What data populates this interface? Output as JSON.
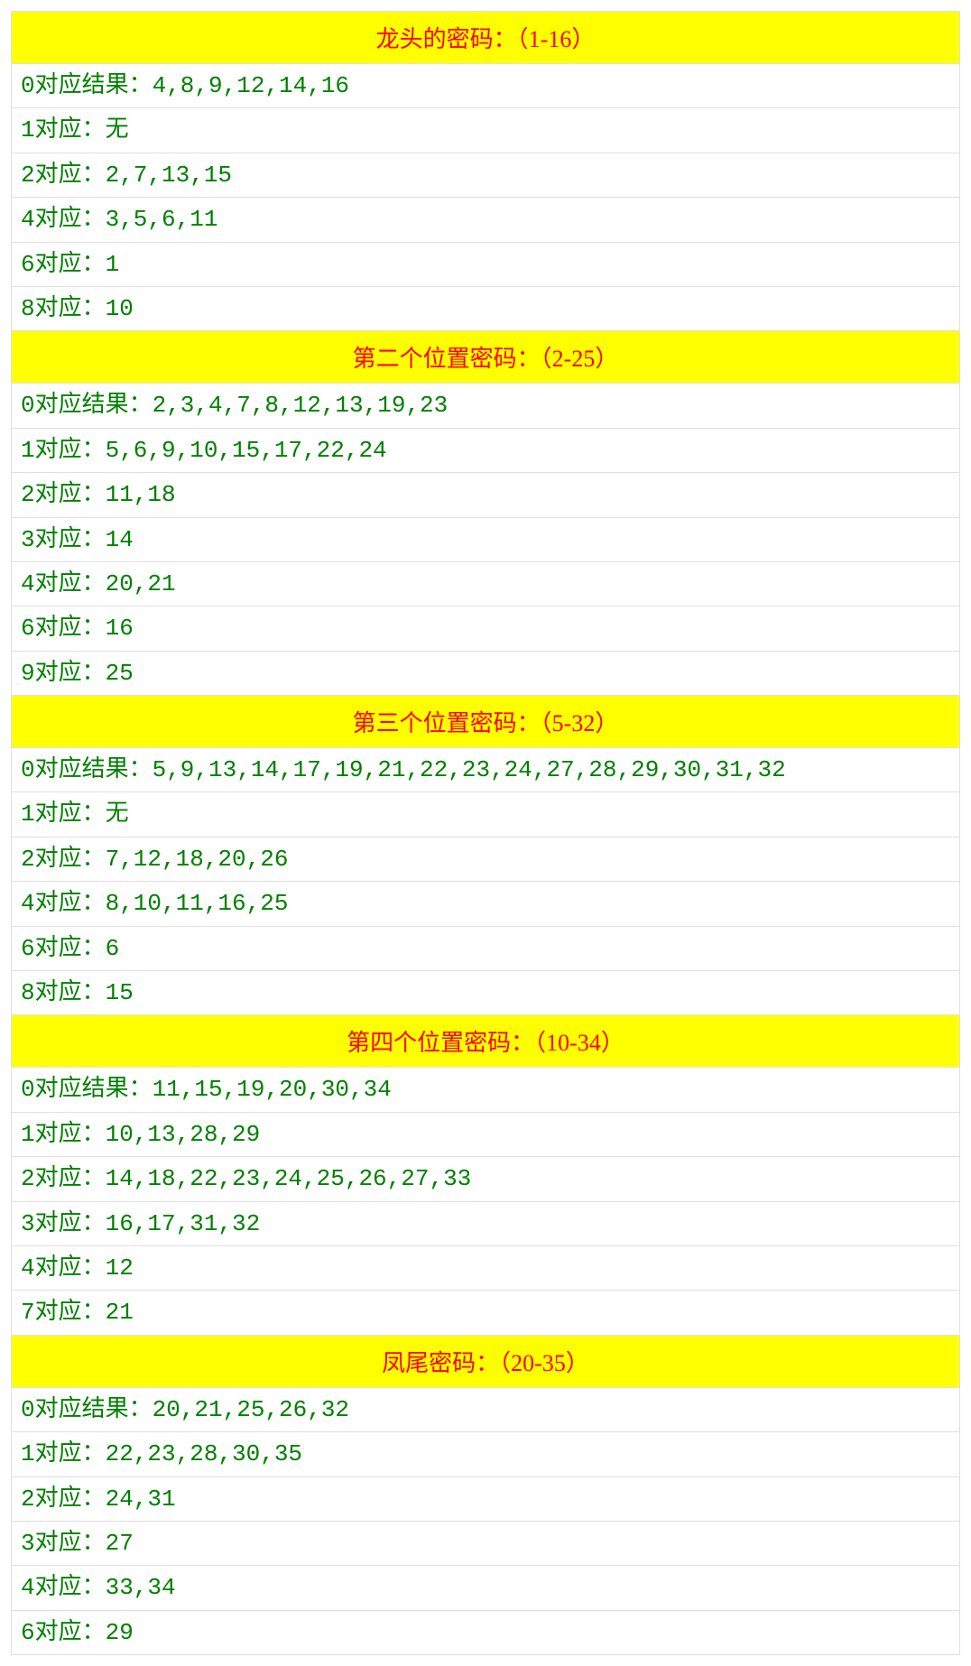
{
  "styling": {
    "header_bg_color": "#ffff00",
    "header_text_color": "#ff0000",
    "data_text_color": "#008000",
    "row_bg_color": "#ffffff",
    "border_color": "#e0e0e0",
    "header_fontsize": 26,
    "data_fontsize": 26
  },
  "sections": [
    {
      "title": "龙头的密码：（1-16）",
      "rows": [
        "0对应结果：4,8,9,12,14,16",
        "1对应：无",
        "2对应：2,7,13,15",
        "4对应：3,5,6,11",
        "6对应：1",
        "8对应：10"
      ]
    },
    {
      "title": "第二个位置密码：（2-25）",
      "rows": [
        "0对应结果：2,3,4,7,8,12,13,19,23",
        "1对应：5,6,9,10,15,17,22,24",
        "2对应：11,18",
        "3对应：14",
        "4对应：20,21",
        "6对应：16",
        "9对应：25"
      ]
    },
    {
      "title": "第三个位置密码：（5-32）",
      "rows": [
        "0对应结果：5,9,13,14,17,19,21,22,23,24,27,28,29,30,31,32",
        "1对应：无",
        "2对应：7,12,18,20,26",
        "4对应：8,10,11,16,25",
        "6对应：6",
        "8对应：15"
      ]
    },
    {
      "title": "第四个位置密码：（10-34）",
      "rows": [
        "0对应结果：11,15,19,20,30,34",
        "1对应：10,13,28,29",
        "2对应：14,18,22,23,24,25,26,27,33",
        "3对应：16,17,31,32",
        "4对应：12",
        "7对应：21"
      ]
    },
    {
      "title": "凤尾密码：（20-35）",
      "rows": [
        "0对应结果：20,21,25,26,32",
        "1对应：22,23,28,30,35",
        "2对应：24,31",
        "3对应：27",
        "4对应：33,34",
        "6对应：29"
      ]
    }
  ]
}
